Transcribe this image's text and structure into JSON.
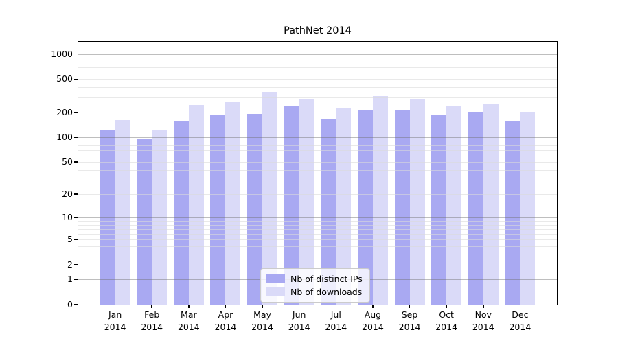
{
  "chart_data": {
    "type": "bar",
    "title": "PathNet 2014",
    "categories": [
      "Jan",
      "Feb",
      "Mar",
      "Apr",
      "May",
      "Jun",
      "Jul",
      "Aug",
      "Sep",
      "Oct",
      "Nov",
      "Dec"
    ],
    "category_year": "2014",
    "series": [
      {
        "name": "Nb of distinct IPs",
        "color": "#a9a9f2",
        "values": [
          120,
          97,
          158,
          185,
          191,
          237,
          168,
          211,
          212,
          184,
          202,
          154
        ]
      },
      {
        "name": "Nb of downloads",
        "color": "#dadaf8",
        "values": [
          160,
          122,
          245,
          262,
          352,
          292,
          221,
          312,
          284,
          236,
          255,
          202
        ]
      }
    ],
    "yscale": "log1p",
    "ylim": [
      0,
      1380
    ],
    "ytick_labeled": [
      0,
      1,
      2,
      5,
      10,
      20,
      50,
      100,
      200,
      500,
      1000
    ],
    "ygrid_major": [
      1,
      10,
      100,
      1000
    ],
    "ygrid_minor": [
      2,
      3,
      4,
      5,
      6,
      7,
      8,
      9,
      20,
      30,
      40,
      50,
      60,
      70,
      80,
      90,
      200,
      300,
      400,
      500,
      600,
      700,
      800,
      900
    ],
    "grid": true,
    "legend_position": "lower center",
    "xlabel": "",
    "ylabel": ""
  }
}
